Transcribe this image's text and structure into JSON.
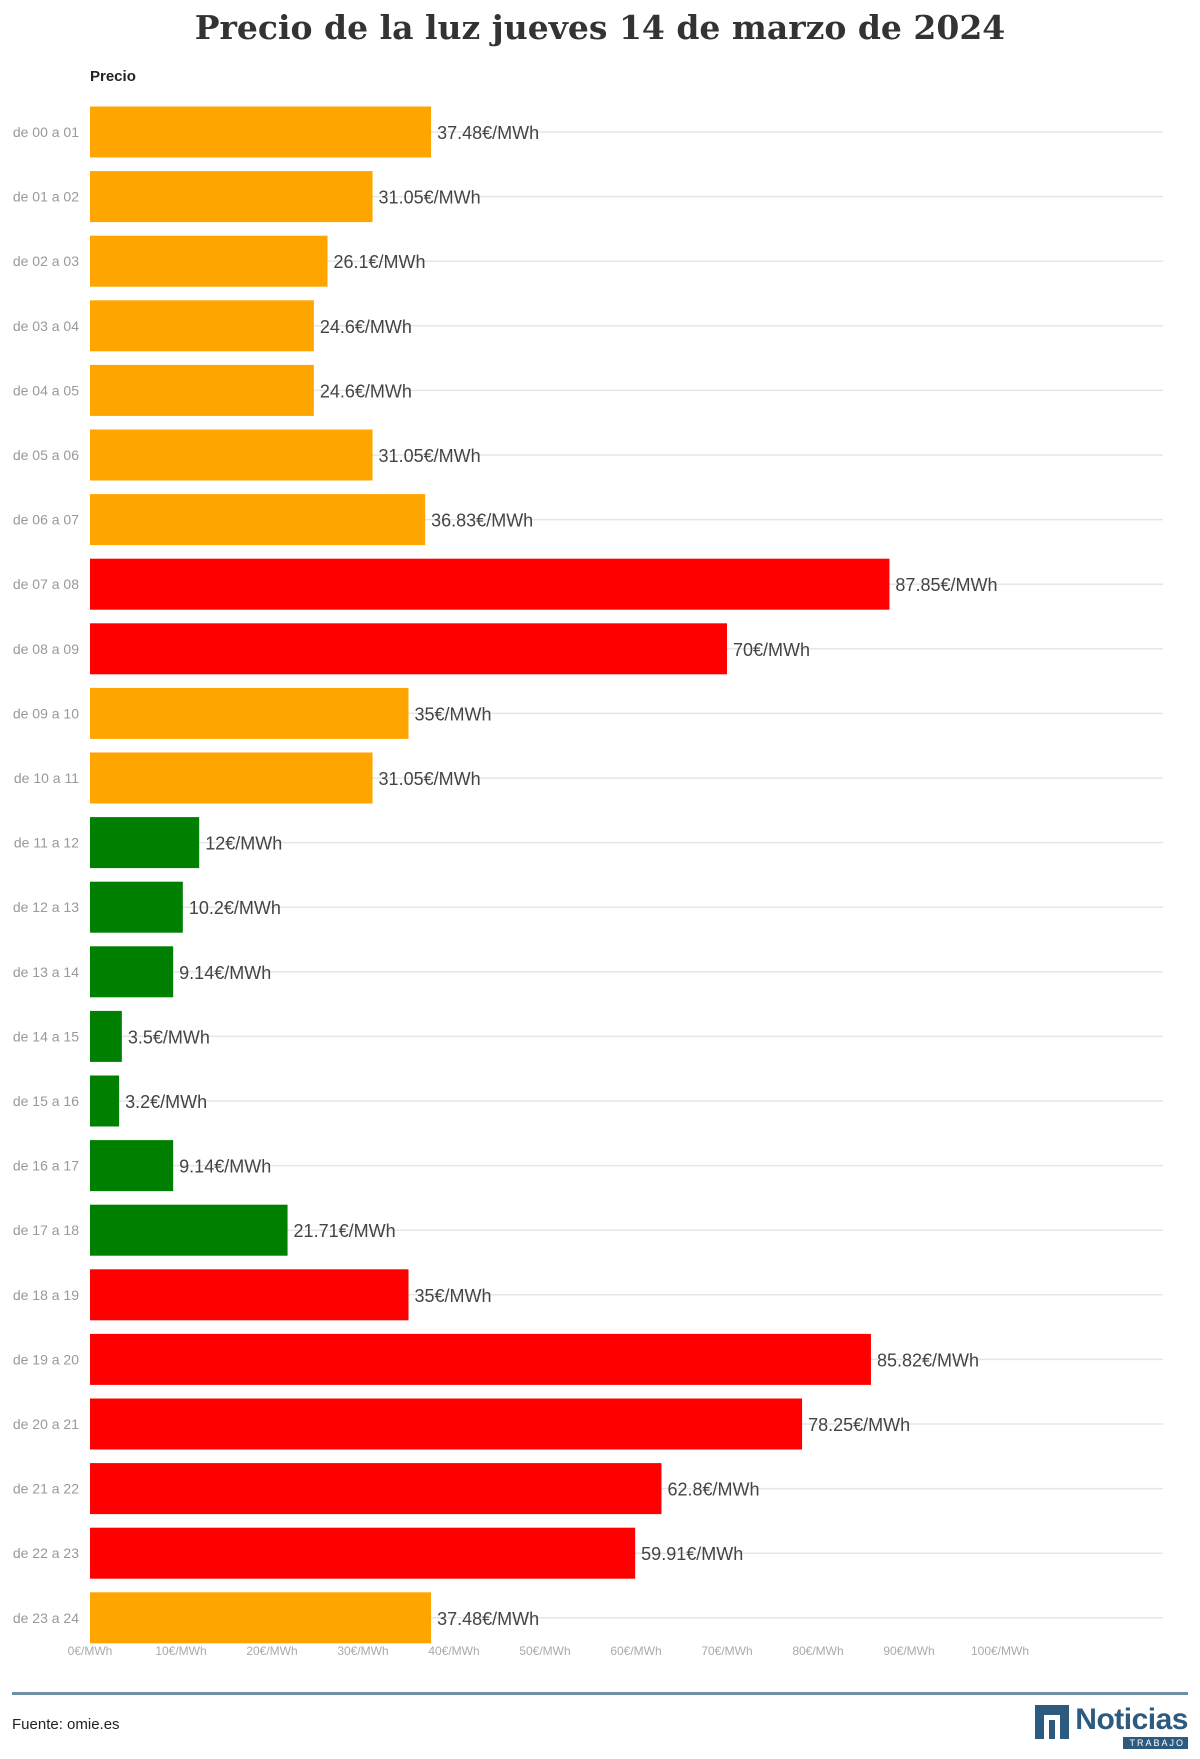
{
  "title": "Precio de la luz jueves 14 de marzo de 2024",
  "source": "Fuente: omie.es",
  "logo": {
    "name": "Noticias",
    "subtitle": "TRABAJO",
    "icon": "noticias-trabajo-logo-icon",
    "color": "#2d5b7f"
  },
  "chart_data": {
    "type": "bar",
    "orientation": "horizontal",
    "series_label": "Precio",
    "value_suffix": "€/MWh",
    "categories": [
      "de 00 a 01",
      "de 01 a 02",
      "de 02 a 03",
      "de 03 a 04",
      "de 04 a 05",
      "de 05 a 06",
      "de 06 a 07",
      "de 07 a 08",
      "de 08 a 09",
      "de 09 a 10",
      "de 10 a 11",
      "de 11 a 12",
      "de 12 a 13",
      "de 13 a 14",
      "de 14 a 15",
      "de 15 a 16",
      "de 16 a 17",
      "de 17 a 18",
      "de 18 a 19",
      "de 19 a 20",
      "de 20 a 21",
      "de 21 a 22",
      "de 22 a 23",
      "de 23 a 24"
    ],
    "values": [
      37.48,
      31.05,
      26.1,
      24.6,
      24.6,
      31.05,
      36.83,
      87.85,
      70,
      35,
      31.05,
      12,
      10.2,
      9.14,
      3.5,
      3.2,
      9.14,
      21.71,
      35,
      85.82,
      78.25,
      62.8,
      59.91,
      37.48
    ],
    "data_labels": [
      "37.48€/MWh",
      "31.05€/MWh",
      "26.1€/MWh",
      "24.6€/MWh",
      "24.6€/MWh",
      "31.05€/MWh",
      "36.83€/MWh",
      "87.85€/MWh",
      "70€/MWh",
      "35€/MWh",
      "31.05€/MWh",
      "12€/MWh",
      "10.2€/MWh",
      "9.14€/MWh",
      "3.5€/MWh",
      "3.2€/MWh",
      "9.14€/MWh",
      "21.71€/MWh",
      "35€/MWh",
      "85.82€/MWh",
      "78.25€/MWh",
      "62.8€/MWh",
      "59.91€/MWh",
      "37.48€/MWh"
    ],
    "bar_colors": [
      "#ffa500",
      "#ffa500",
      "#ffa500",
      "#ffa500",
      "#ffa500",
      "#ffa500",
      "#ffa500",
      "#ff0000",
      "#ff0000",
      "#ffa500",
      "#ffa500",
      "#008000",
      "#008000",
      "#008000",
      "#008000",
      "#008000",
      "#008000",
      "#008000",
      "#ff0000",
      "#ff0000",
      "#ff0000",
      "#ff0000",
      "#ff0000",
      "#ffa500"
    ],
    "x_ticks": [
      0,
      10,
      20,
      30,
      40,
      50,
      60,
      70,
      80,
      90,
      100
    ],
    "x_tick_labels": [
      "0€/MWh",
      "10€/MWh",
      "20€/MWh",
      "30€/MWh",
      "40€/MWh",
      "50€/MWh",
      "60€/MWh",
      "70€/MWh",
      "80€/MWh",
      "90€/MWh",
      "100€/MWh"
    ],
    "xlim": [
      0,
      100
    ],
    "grid": true,
    "colors": {
      "grid": "#e6e6e6",
      "category_label": "#999999",
      "value_label": "#444444",
      "tick_label": "#aaaaaa"
    }
  }
}
